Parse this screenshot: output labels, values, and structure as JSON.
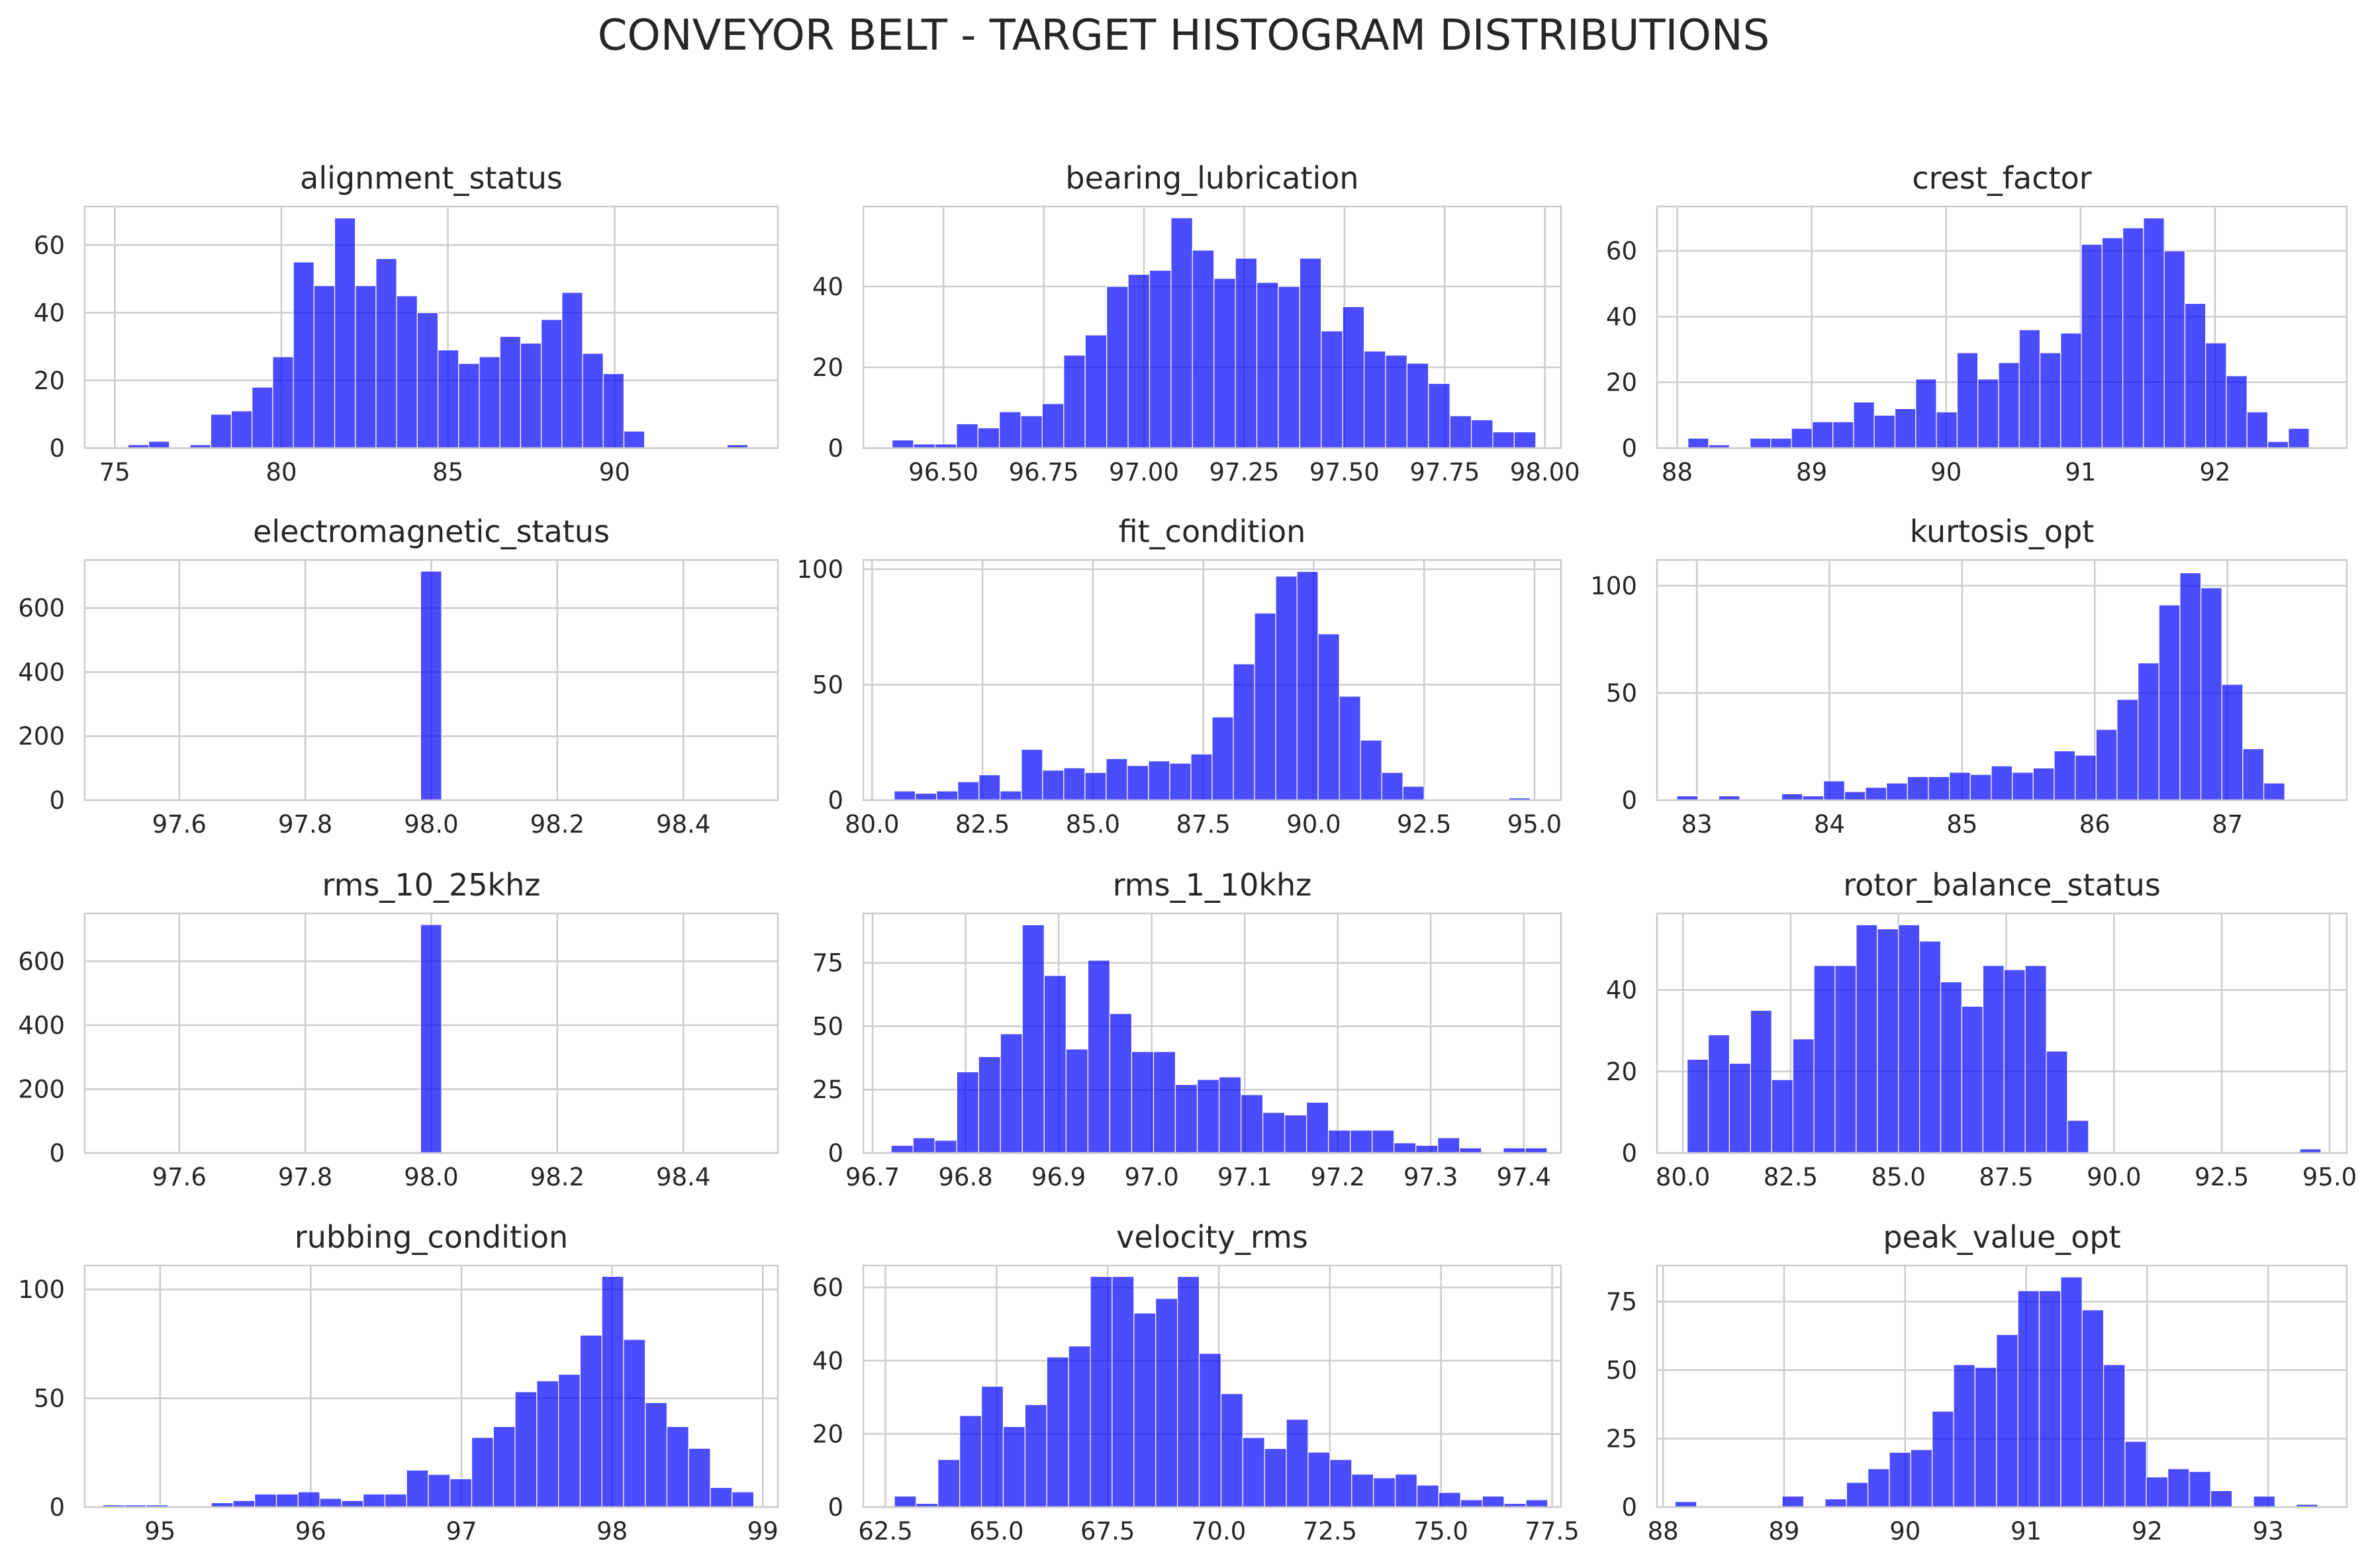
{
  "figure": {
    "title": "CONVEYOR BELT - TARGET HISTOGRAM DISTRIBUTIONS"
  },
  "style": {
    "bar_color": "#0000ff",
    "bar_alpha": 0.7,
    "grid_color": "#cccccc",
    "text_color": "#262626"
  },
  "chart_data": [
    {
      "type": "bar",
      "title": "alignment_status",
      "xlim": [
        74.1,
        94.9
      ],
      "ylim": [
        0,
        71.4
      ],
      "xticks": [
        75,
        80,
        85,
        90
      ],
      "xtick_labels": [
        "75",
        "80",
        "85",
        "90"
      ],
      "yticks": [
        0,
        20,
        40,
        60
      ],
      "ytick_labels": [
        "0",
        "20",
        "40",
        "60"
      ],
      "bin_start": 75.4,
      "bin_width": 0.62,
      "values": [
        1,
        2,
        0,
        1,
        10,
        11,
        18,
        27,
        55,
        48,
        68,
        48,
        56,
        45,
        40,
        29,
        25,
        27,
        33,
        31,
        38,
        46,
        28,
        22,
        5,
        0,
        0,
        0,
        0,
        1
      ]
    },
    {
      "type": "bar",
      "title": "bearing_lubrication",
      "xlim": [
        96.3,
        98.04
      ],
      "ylim": [
        0,
        59.8
      ],
      "xticks": [
        96.5,
        96.75,
        97.0,
        97.25,
        97.5,
        97.75,
        98.0
      ],
      "xtick_labels": [
        "96.50",
        "96.75",
        "97.00",
        "97.25",
        "97.50",
        "97.75",
        "98.00"
      ],
      "yticks": [
        0,
        20,
        40
      ],
      "ytick_labels": [
        "0",
        "20",
        "40"
      ],
      "bin_start": 96.372,
      "bin_width": 0.0535,
      "values": [
        2,
        1,
        1,
        6,
        5,
        9,
        8,
        11,
        23,
        28,
        40,
        43,
        44,
        57,
        49,
        42,
        47,
        41,
        40,
        47,
        29,
        35,
        24,
        23,
        21,
        16,
        8,
        7,
        4,
        4
      ]
    },
    {
      "type": "bar",
      "title": "crest_factor",
      "xlim": [
        87.85,
        92.98
      ],
      "ylim": [
        0,
        73.5
      ],
      "xticks": [
        88,
        89,
        90,
        91,
        92
      ],
      "xtick_labels": [
        "88",
        "89",
        "90",
        "91",
        "92"
      ],
      "yticks": [
        0,
        20,
        40,
        60
      ],
      "ytick_labels": [
        "0",
        "20",
        "40",
        "60"
      ],
      "bin_start": 88.08,
      "bin_width": 0.154,
      "values": [
        3,
        1,
        0,
        3,
        3,
        6,
        8,
        8,
        14,
        10,
        12,
        21,
        11,
        29,
        21,
        26,
        36,
        29,
        35,
        62,
        64,
        67,
        70,
        60,
        44,
        32,
        22,
        11,
        2,
        6
      ]
    },
    {
      "type": "bar",
      "title": "electromagnetic_status",
      "xlim": [
        97.45,
        98.55
      ],
      "ylim": [
        0,
        750
      ],
      "xticks": [
        97.6,
        97.8,
        98.0,
        98.2,
        98.4
      ],
      "xtick_labels": [
        "97.6",
        "97.8",
        "98.0",
        "98.2",
        "98.4"
      ],
      "yticks": [
        0,
        200,
        400,
        600
      ],
      "ytick_labels": [
        "0",
        "200",
        "400",
        "600"
      ],
      "bin_start": 97.983,
      "bin_width": 0.0334,
      "values": [
        715
      ]
    },
    {
      "type": "bar",
      "title": "fit_condition",
      "xlim": [
        79.8,
        95.6
      ],
      "ylim": [
        0,
        104
      ],
      "xticks": [
        80.0,
        82.5,
        85.0,
        87.5,
        90.0,
        92.5,
        95.0
      ],
      "xtick_labels": [
        "80.0",
        "82.5",
        "85.0",
        "87.5",
        "90.0",
        "92.5",
        "95.0"
      ],
      "yticks": [
        0,
        50,
        100
      ],
      "ytick_labels": [
        "0",
        "50",
        "100"
      ],
      "bin_start": 80.5,
      "bin_width": 0.48,
      "values": [
        4,
        3,
        4,
        8,
        11,
        4,
        22,
        13,
        14,
        12,
        18,
        15,
        17,
        16,
        20,
        36,
        59,
        81,
        97,
        99,
        72,
        45,
        26,
        12,
        6,
        0,
        0,
        0,
        0,
        1
      ]
    },
    {
      "type": "bar",
      "title": "kurtosis_opt",
      "xlim": [
        82.7,
        87.9
      ],
      "ylim": [
        0,
        112
      ],
      "xticks": [
        83,
        84,
        85,
        86,
        87
      ],
      "xtick_labels": [
        "83",
        "84",
        "85",
        "86",
        "87"
      ],
      "yticks": [
        0,
        50,
        100
      ],
      "ytick_labels": [
        "0",
        "50",
        "100"
      ],
      "bin_start": 82.85,
      "bin_width": 0.158,
      "values": [
        2,
        0,
        2,
        0,
        0,
        3,
        2,
        9,
        4,
        6,
        8,
        11,
        11,
        13,
        12,
        16,
        13,
        15,
        23,
        21,
        33,
        47,
        64,
        91,
        106,
        99,
        54,
        24,
        8,
        0
      ]
    },
    {
      "type": "bar",
      "title": "rms_10_25khz",
      "xlim": [
        97.45,
        98.55
      ],
      "ylim": [
        0,
        750
      ],
      "xticks": [
        97.6,
        97.8,
        98.0,
        98.2,
        98.4
      ],
      "xtick_labels": [
        "97.6",
        "97.8",
        "98.0",
        "98.2",
        "98.4"
      ],
      "yticks": [
        0,
        200,
        400,
        600
      ],
      "ytick_labels": [
        "0",
        "200",
        "400",
        "600"
      ],
      "bin_start": 97.983,
      "bin_width": 0.0334,
      "values": [
        715
      ]
    },
    {
      "type": "bar",
      "title": "rms_1_10khz",
      "xlim": [
        96.69,
        97.44
      ],
      "ylim": [
        0,
        94.5
      ],
      "xticks": [
        96.7,
        96.8,
        96.9,
        97.0,
        97.1,
        97.2,
        97.3,
        97.4
      ],
      "xtick_labels": [
        "96.7",
        "96.8",
        "96.9",
        "97.0",
        "97.1",
        "97.2",
        "97.3",
        "97.4"
      ],
      "yticks": [
        0,
        25,
        50,
        75
      ],
      "ytick_labels": [
        "0",
        "25",
        "50",
        "75"
      ],
      "bin_start": 96.72,
      "bin_width": 0.0235,
      "values": [
        3,
        6,
        5,
        32,
        38,
        47,
        90,
        70,
        41,
        76,
        55,
        40,
        40,
        27,
        29,
        30,
        23,
        16,
        15,
        20,
        9,
        9,
        9,
        4,
        3,
        6,
        2,
        0,
        2,
        2
      ]
    },
    {
      "type": "bar",
      "title": "rotor_balance_status",
      "xlim": [
        79.4,
        95.4
      ],
      "ylim": [
        0,
        58.8
      ],
      "xticks": [
        80.0,
        82.5,
        85.0,
        87.5,
        90.0,
        92.5,
        95.0
      ],
      "xtick_labels": [
        "80.0",
        "82.5",
        "85.0",
        "87.5",
        "90.0",
        "92.5",
        "95.0"
      ],
      "yticks": [
        0,
        20,
        40
      ],
      "ytick_labels": [
        "0",
        "20",
        "40"
      ],
      "bin_start": 80.1,
      "bin_width": 0.49,
      "values": [
        23,
        29,
        22,
        35,
        18,
        28,
        46,
        46,
        56,
        55,
        56,
        52,
        42,
        36,
        46,
        45,
        46,
        25,
        8,
        0,
        0,
        0,
        0,
        0,
        0,
        0,
        0,
        0,
        0,
        1
      ]
    },
    {
      "type": "bar",
      "title": "rubbing_condition",
      "xlim": [
        94.5,
        99.1
      ],
      "ylim": [
        0,
        111
      ],
      "xticks": [
        95,
        96,
        97,
        98,
        99
      ],
      "xtick_labels": [
        "95",
        "96",
        "97",
        "98",
        "99"
      ],
      "yticks": [
        0,
        50,
        100
      ],
      "ytick_labels": [
        "0",
        "50",
        "100"
      ],
      "bin_start": 94.62,
      "bin_width": 0.144,
      "values": [
        1,
        1,
        1,
        0,
        0,
        2,
        3,
        6,
        6,
        7,
        4,
        3,
        6,
        6,
        17,
        15,
        13,
        32,
        37,
        53,
        58,
        61,
        79,
        106,
        77,
        48,
        37,
        27,
        9,
        7
      ]
    },
    {
      "type": "bar",
      "title": "velocity_rms",
      "xlim": [
        62,
        77.7
      ],
      "ylim": [
        0,
        66
      ],
      "xticks": [
        62.5,
        65.0,
        67.5,
        70.0,
        72.5,
        75.0,
        77.5
      ],
      "xtick_labels": [
        "62.5",
        "65.0",
        "67.5",
        "70.0",
        "72.5",
        "75.0",
        "77.5"
      ],
      "yticks": [
        0,
        20,
        40,
        60
      ],
      "ytick_labels": [
        "0",
        "20",
        "40",
        "60"
      ],
      "bin_start": 62.7,
      "bin_width": 0.49,
      "values": [
        3,
        1,
        13,
        25,
        33,
        22,
        28,
        41,
        44,
        63,
        63,
        53,
        57,
        63,
        42,
        31,
        19,
        16,
        24,
        15,
        13,
        9,
        8,
        9,
        6,
        4,
        2,
        3,
        1,
        2
      ]
    },
    {
      "type": "bar",
      "title": "peak_value_opt",
      "xlim": [
        87.95,
        93.65
      ],
      "ylim": [
        0,
        88.2
      ],
      "xticks": [
        88,
        89,
        90,
        91,
        92,
        93
      ],
      "xtick_labels": [
        "88",
        "89",
        "90",
        "91",
        "92",
        "93"
      ],
      "yticks": [
        0,
        25,
        50,
        75
      ],
      "ytick_labels": [
        "0",
        "25",
        "50",
        "75"
      ],
      "bin_start": 88.1,
      "bin_width": 0.177,
      "values": [
        2,
        0,
        0,
        0,
        0,
        4,
        0,
        3,
        9,
        14,
        20,
        21,
        35,
        52,
        51,
        63,
        79,
        79,
        84,
        72,
        52,
        24,
        11,
        14,
        13,
        6,
        0,
        4,
        0,
        1
      ]
    }
  ]
}
